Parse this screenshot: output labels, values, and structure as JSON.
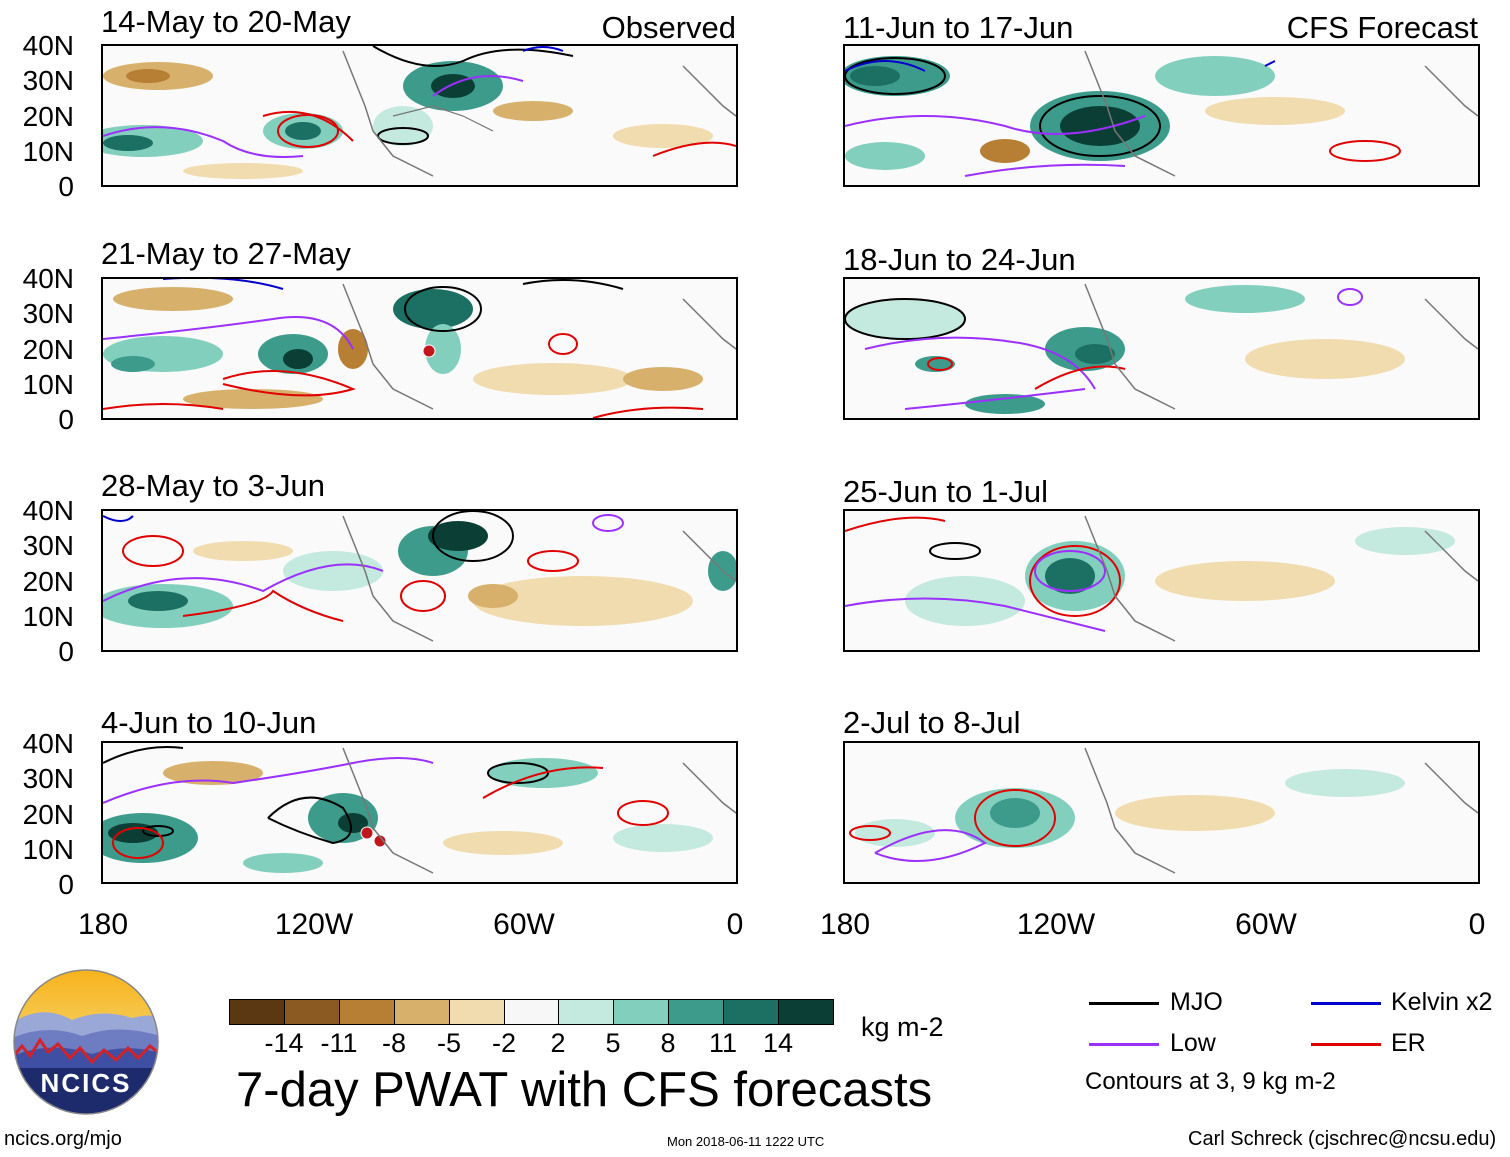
{
  "observed_tag": "Observed",
  "forecast_tag": "CFS Forecast",
  "panels": {
    "obs1": {
      "title": "14-May to 20-May"
    },
    "obs2": {
      "title": "21-May to 27-May"
    },
    "obs3": {
      "title": "28-May to 3-Jun"
    },
    "obs4": {
      "title": "4-Jun to 10-Jun"
    },
    "fc1": {
      "title": "11-Jun to 17-Jun"
    },
    "fc2": {
      "title": "18-Jun to 24-Jun"
    },
    "fc3": {
      "title": "25-Jun to 1-Jul"
    },
    "fc4": {
      "title": "2-Jul to 8-Jul"
    }
  },
  "lat_labels": [
    "40N",
    "30N",
    "20N",
    "10N",
    "0"
  ],
  "lon_labels": [
    "180",
    "120W",
    "60W",
    "0"
  ],
  "colorbar": {
    "unit": "kg m-2",
    "ticks": [
      "-14",
      "-11",
      "-8",
      "-5",
      "-2",
      "2",
      "5",
      "8",
      "11",
      "14"
    ],
    "colors": [
      "#5b3712",
      "#8a5a22",
      "#b67f34",
      "#d7b06b",
      "#f0dcae",
      "#f7f7f7",
      "#c4e9df",
      "#83cfbd",
      "#3d9b8c",
      "#1c6f63",
      "#0b3f36"
    ]
  },
  "legend": {
    "mjo": {
      "label": "MJO",
      "color": "#000000"
    },
    "kelvin": {
      "label": "Kelvin x2",
      "color": "#0000cc"
    },
    "low": {
      "label": "Low",
      "color": "#9b30ff"
    },
    "er": {
      "label": "ER",
      "color": "#e00000"
    },
    "note": "Contours at 3, 9 kg m-2"
  },
  "main_title": "7-day PWAT with CFS forecasts",
  "logo_text": "NCICS",
  "footer": {
    "url": "ncics.org/mjo",
    "timestamp": "Mon 2018-06-11 1222 UTC",
    "credit": "Carl Schreck (cjschrec@ncsu.edu)"
  }
}
